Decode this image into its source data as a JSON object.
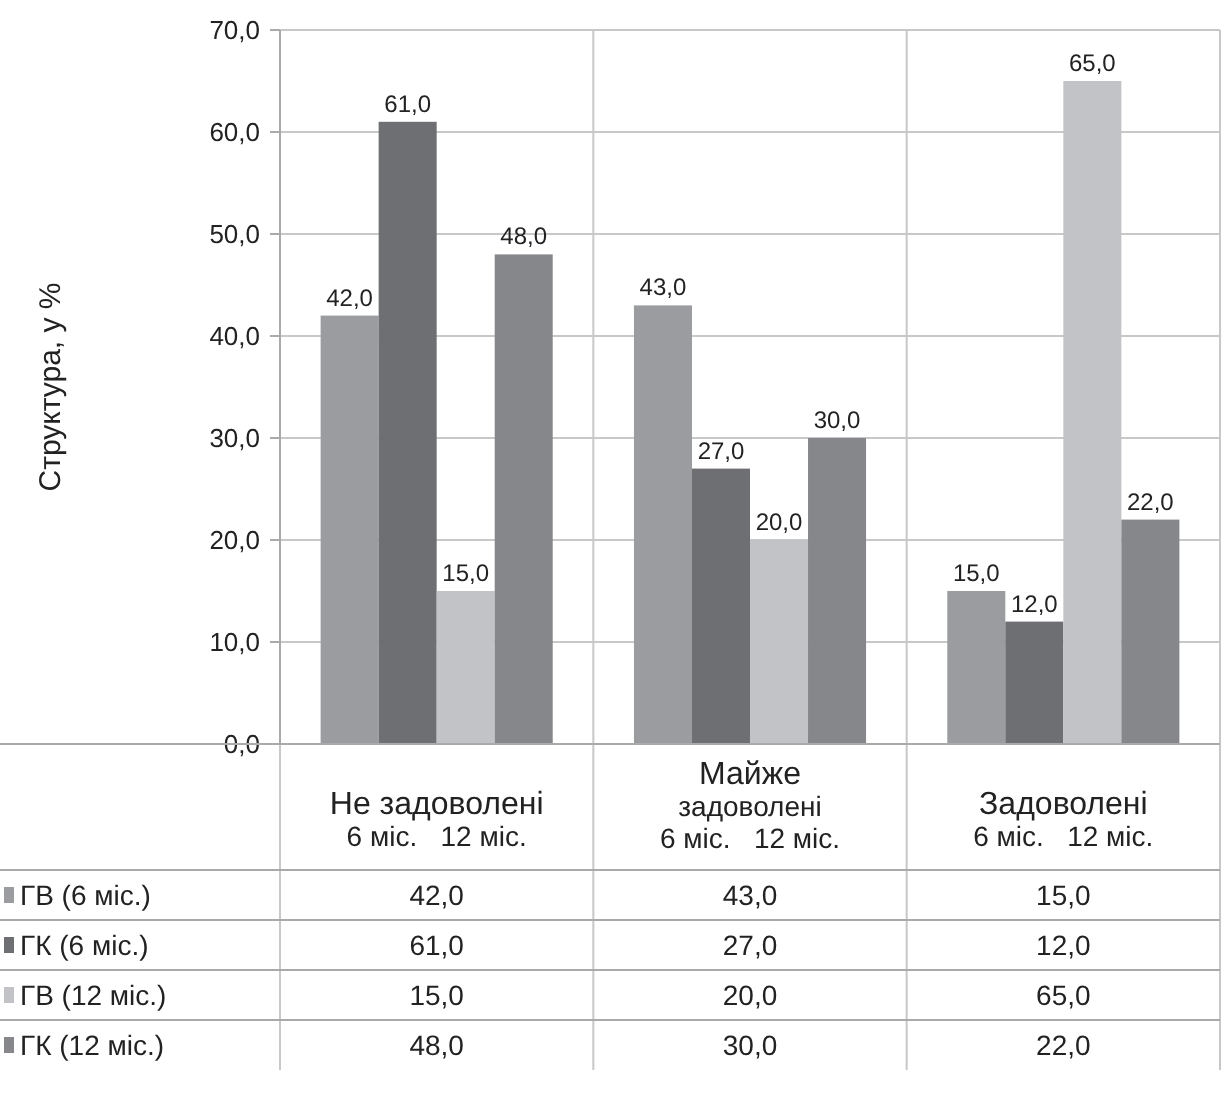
{
  "chart_data": {
    "type": "bar",
    "ylabel": "Структура,  у %",
    "categories": [
      "Не задоволені\n6 міс.   12 міс.",
      "Майже\nзадоволені\n6 міс.   12 міс.",
      "Задоволені\n6 міс.   12 міс."
    ],
    "series": [
      {
        "name": "ГВ (6 міс.)",
        "color": "#9b9ca0",
        "values": [
          42,
          43,
          15
        ],
        "value_labels": [
          "42,0",
          "43,0",
          "15,0"
        ]
      },
      {
        "name": "ГК (6 міс.)",
        "color": "#6e6f73",
        "values": [
          61,
          27,
          12
        ],
        "value_labels": [
          "61,0",
          "27,0",
          "12,0"
        ]
      },
      {
        "name": "ГВ (12 міс.)",
        "color": "#c2c3c7",
        "values": [
          15,
          20,
          65
        ],
        "value_labels": [
          "15,0",
          "20,0",
          "65,0"
        ]
      },
      {
        "name": "ГК (12 міс.)",
        "color": "#86878b",
        "values": [
          48,
          30,
          22
        ],
        "value_labels": [
          "48,0",
          "30,0",
          "22,0"
        ]
      }
    ],
    "ylim": [
      0,
      70
    ],
    "yticks": [
      {
        "value": 0,
        "label": "0,0"
      },
      {
        "value": 10,
        "label": "10,0"
      },
      {
        "value": 20,
        "label": "20,0"
      },
      {
        "value": 30,
        "label": "30,0"
      },
      {
        "value": 40,
        "label": "40,0"
      },
      {
        "value": 50,
        "label": "50,0"
      },
      {
        "value": 60,
        "label": "60,0"
      },
      {
        "value": 70,
        "label": "70,0"
      }
    ],
    "grid": "y",
    "legend": "bottom left"
  }
}
